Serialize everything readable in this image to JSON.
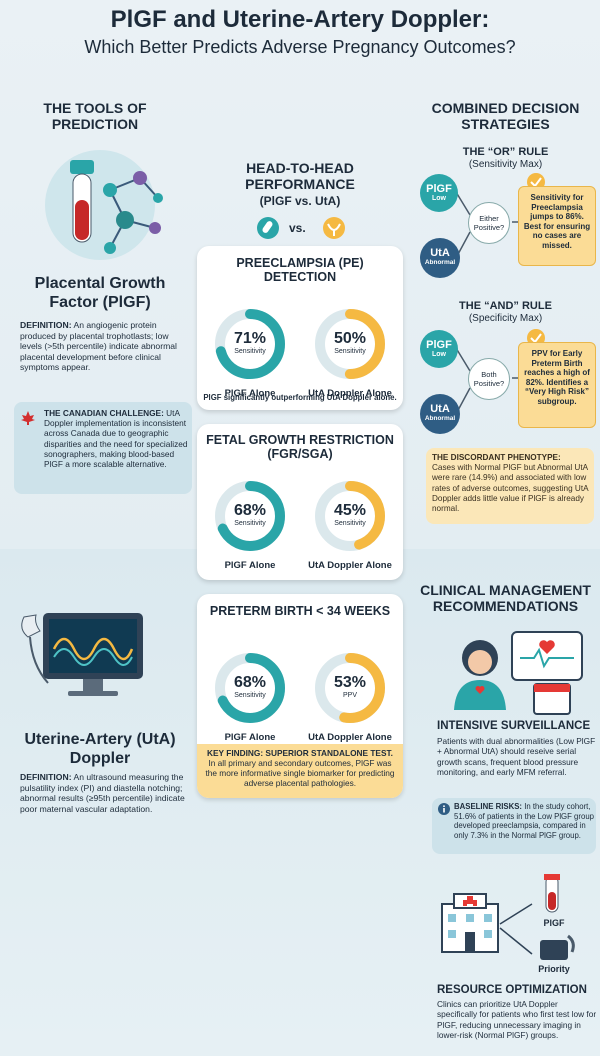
{
  "header": {
    "title": "PlGF and Uterine-Artery Doppler:",
    "subtitle": "Which Better Predicts Adverse Pregnancy Outcomes?"
  },
  "tools": {
    "heading": "THE TOOLS OF PREDICTION",
    "plgf": {
      "name": "Placental Growth Factor (PlGF)",
      "definition_label": "DEFINITION:",
      "definition": "An angiogenic protein produced by placental trophotlasts; low levels (>5th percentile) indicate abnormal placental development before clinical symptoms appear."
    },
    "canadian_challenge": {
      "label": "THE CANADIAN CHALLENGE:",
      "text": "UtA Doppler implementation is inconsistent across Canada due to geographic disparities and the need for specialized sonographers, making blood-based PlGF a more scalable alternative."
    },
    "uta": {
      "name": "Uterine-Artery (UtA) Doppler",
      "definition_label": "DEFINITION:",
      "definition": "An ultrasound measuring the pulsatility index (PI) and diastella notching; abnormal results (≥95th percentile) indicate poor maternal vascular adaptation."
    }
  },
  "comparison": {
    "heading": "HEAD-TO-HEAD PERFORMANCE",
    "subheading": "(PlGF vs. UtA)",
    "vs": "vs.",
    "cards": [
      {
        "title": "PREECLAMPSIA (PE) DETECTION",
        "donuts": [
          {
            "value": 71,
            "label": "71%",
            "metric": "Sensitivity",
            "name": "PlGF Alone"
          },
          {
            "value": 50,
            "label": "50%",
            "metric": "Sensitivity",
            "name": "UtA Doppler Alone"
          }
        ],
        "note": "PlGF significantly outperforming UtA Doppler alone."
      },
      {
        "title": "FETAL GROWTH RESTRICTION (FGR/SGA)",
        "donuts": [
          {
            "value": 68,
            "label": "68%",
            "metric": "Sensitivity",
            "name": "PlGF Alone"
          },
          {
            "value": 45,
            "label": "45%",
            "metric": "Sensitivity",
            "name": "UtA Doppler Alone"
          }
        ]
      },
      {
        "title": "PRETERM BIRTH < 34 WEEKS",
        "donuts": [
          {
            "value": 68,
            "label": "68%",
            "metric": "Sensitivity",
            "name": "PlGF Alone"
          },
          {
            "value": 53,
            "label": "53%",
            "metric": "PPV",
            "name": "UtA Doppler Alone"
          }
        ]
      }
    ],
    "key_finding": {
      "label": "KEY FINDING: SUPERIOR STANDALONE TEST.",
      "text": "In all primary and secondary outcomes, PlGF was the more informative single biomarker for predicting adverse placental pathologies."
    }
  },
  "strategies": {
    "heading": "COMBINED DECISION STRATEGIES",
    "or_rule": {
      "title": "THE “OR” RULE",
      "subtitle": "(Sensitivity Max)",
      "node_a": "PlGF",
      "node_a_sub": "Low",
      "node_b": "UtA",
      "node_b_sub": "Abnormal",
      "decision": "Either Positive?",
      "result": "Sensitivity for Preeclampsia jumps to 86%. Best for ensuring no cases are missed."
    },
    "and_rule": {
      "title": "THE “AND” RULE",
      "subtitle": "(Specificity Max)",
      "node_a": "PlGF",
      "node_a_sub": "Low",
      "node_b": "UtA",
      "node_b_sub": "Abnormal",
      "decision": "Both Positive?",
      "result": "PPV for Early Preterm Birth reaches a high of 82%. Identifies a “Very High Risk” subgroup."
    },
    "discordant": {
      "label": "THE DISCORDANT PHENOTYPE:",
      "text": "Cases with Normal PlGF but Abnormal UtA were rare (14.9%) and associated with low rates of adverse outcomes, suggesting UtA Doppler adds little value if PlGF is already normal."
    }
  },
  "management": {
    "heading": "CLINICAL MANAGEMENT RECOMMENDATIONS",
    "surveillance": {
      "title": "INTENSIVE SURVEILLANCE",
      "text": "Patients with dual abnormalities (Low PlGF + Abnormal UtA) should reseive serial growth scans, frequent blood pressure monitoring, and early MFM referral."
    },
    "baseline": {
      "label": "BASELINE RISKS:",
      "text": "In the study cohort, 51.6% of patients in the Low PlGF group developed preeclampsia, compared in only 7.3% in the Normal PlGF group."
    },
    "icon_labels": [
      "PlGF",
      "Priority"
    ],
    "resource": {
      "title": "RESOURCE OPTIMIZATION",
      "text": "Clinics can prioritize UtA Doppler specifically for patients who first test low for PlGF, reducing unnecessary imaging in lower-risk (Normal PlGF) groups."
    }
  }
}
